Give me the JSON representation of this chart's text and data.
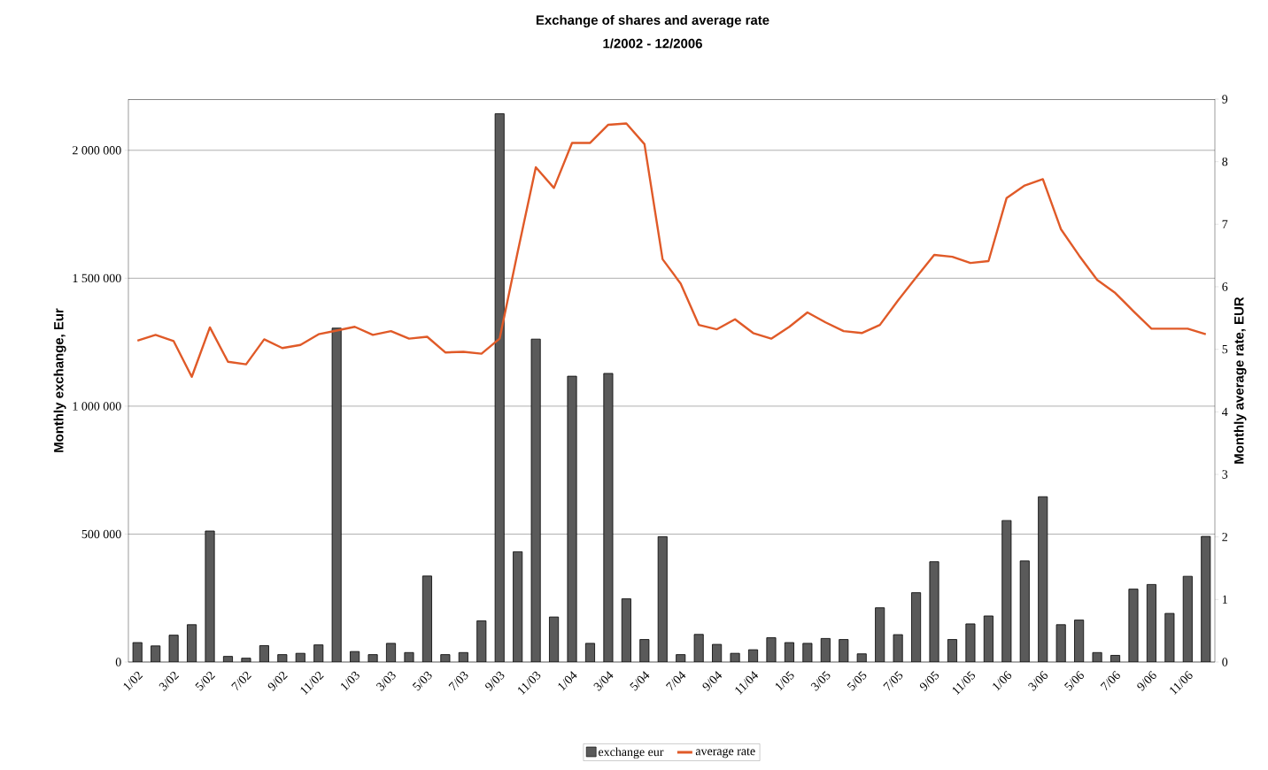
{
  "chart_data": {
    "type": "bar",
    "title": "Exchange of shares and average rate",
    "subtitle": "1/2002 - 12/2006",
    "ylabel": "Monthly exchange, Eur",
    "y2label": "Monthly average rate, EUR",
    "categories": [
      "1/02",
      null,
      "3/02",
      null,
      "5/02",
      null,
      "7/02",
      null,
      "9/02",
      null,
      "11/02",
      null,
      "1/03",
      null,
      "3/03",
      null,
      "5/03",
      null,
      "7/03",
      null,
      "9/03",
      null,
      "11/03",
      null,
      "1/04",
      null,
      "3/04",
      null,
      "5/04",
      null,
      "7/04",
      null,
      "9/04",
      null,
      "11/04",
      null,
      "1/05",
      null,
      "3/05",
      null,
      "5/05",
      null,
      "7/05",
      null,
      "9/05",
      null,
      "11/05",
      null,
      "1/06",
      null,
      "3/06",
      null,
      "5/06",
      null,
      "7/06",
      null,
      "9/06",
      null,
      "11/06",
      null
    ],
    "series": [
      {
        "name": "exchange eur",
        "color": "#5a5a5a",
        "values": [
          76000,
          63000,
          105000,
          146000,
          512000,
          22000,
          15000,
          64000,
          29000,
          34000,
          67000,
          1305000,
          41000,
          29000,
          73000,
          37000,
          336000,
          29000,
          37000,
          161000,
          2143000,
          431000,
          1262000,
          176000,
          1117000,
          73000,
          1128000,
          247000,
          88000,
          490000,
          29000,
          108000,
          69000,
          34000,
          48000,
          95000,
          76000,
          73000,
          92000,
          88000,
          32000,
          212000,
          107000,
          271000,
          392000,
          88000,
          149000,
          180000,
          553000,
          395000,
          646000,
          146000,
          164000,
          37000,
          26000,
          285000,
          303000,
          190000,
          335000,
          491000
        ]
      },
      {
        "name": "average rate",
        "type": "line",
        "axis": "y2",
        "color": "#e05a28",
        "marker": "none",
        "line_style": "solid",
        "values": [
          5.14,
          5.23,
          5.13,
          4.56,
          5.35,
          4.8,
          4.76,
          5.16,
          5.02,
          5.07,
          5.24,
          5.3,
          5.36,
          5.23,
          5.29,
          5.17,
          5.2,
          4.95,
          4.96,
          4.93,
          5.17,
          6.56,
          7.91,
          7.58,
          8.3,
          8.3,
          8.59,
          8.61,
          8.28,
          6.44,
          6.05,
          5.39,
          5.32,
          5.48,
          5.26,
          5.17,
          5.36,
          5.59,
          5.43,
          5.29,
          5.26,
          5.39,
          5.78,
          6.15,
          6.51,
          6.48,
          6.38,
          6.41,
          7.42,
          7.62,
          7.72,
          6.92,
          6.5,
          6.11,
          5.9,
          5.61,
          5.33,
          5.33,
          5.33,
          5.24
        ]
      }
    ],
    "ylim": [
      0,
      2200000
    ],
    "yticks": [
      0,
      {
        "value": 500000,
        "label": "500 000"
      },
      {
        "value": 1000000,
        "label": "1 000 000"
      },
      {
        "value": 1500000,
        "label": "1 500 000"
      },
      {
        "value": 2000000,
        "label": "2 000 000"
      }
    ],
    "y2lim": [
      0,
      9
    ],
    "y2ticks": [
      0,
      1,
      2,
      3,
      4,
      5,
      6,
      7,
      8,
      9
    ],
    "grid": "y",
    "legend": "bottom"
  }
}
